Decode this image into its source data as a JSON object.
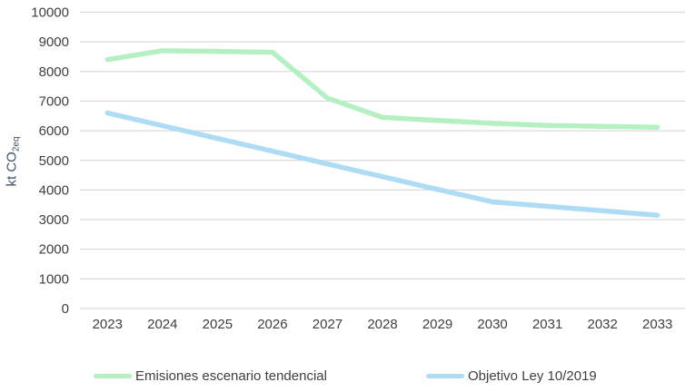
{
  "chart_data": {
    "type": "line",
    "title": "",
    "xlabel": "",
    "ylabel": {
      "main": "kt CO",
      "sub": "2eq"
    },
    "categories": [
      "2023",
      "2024",
      "2025",
      "2026",
      "2027",
      "2028",
      "2029",
      "2030",
      "2031",
      "2032",
      "2033"
    ],
    "y_ticks": [
      0,
      1000,
      2000,
      3000,
      4000,
      5000,
      6000,
      7000,
      8000,
      9000,
      10000
    ],
    "ylim": [
      0,
      10000
    ],
    "grid": "horizontal",
    "legend_position": "bottom",
    "series": [
      {
        "name": "Emisiones escenario tendencial",
        "color": "#b5f0c2",
        "values": [
          8400,
          8700,
          8680,
          8650,
          7100,
          6450,
          6350,
          6250,
          6180,
          6150,
          6120
        ]
      },
      {
        "name": "Objetivo Ley 10/2019",
        "color": "#aedcf5",
        "values": [
          6600,
          6170,
          5740,
          5310,
          4880,
          4450,
          4020,
          3600,
          3450,
          3300,
          3150
        ]
      }
    ]
  },
  "colors": {
    "background": "#ffffff",
    "gridline": "#d9d9d9",
    "tick_label": "#3f3f3f",
    "axis_title": "#44546a",
    "legend_text": "#3f3f3f"
  }
}
